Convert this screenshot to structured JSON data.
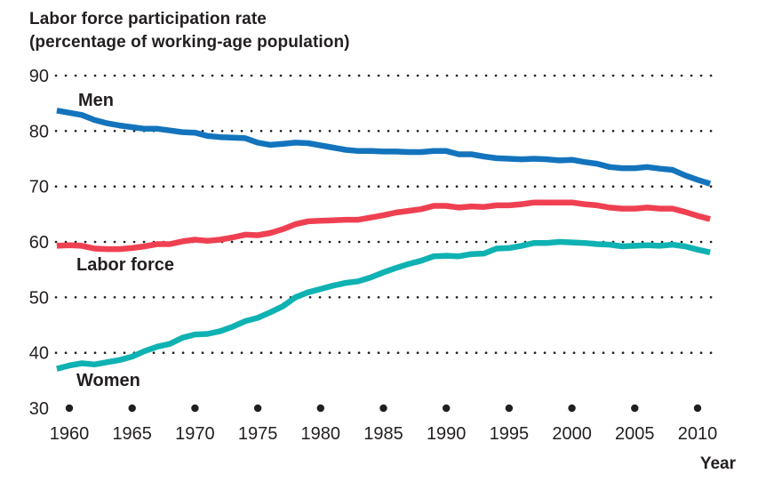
{
  "chart_data": {
    "type": "line",
    "title": "Labor force participation rate",
    "subtitle": "(percentage of working-age population)",
    "xlabel": "Year",
    "ylabel": "",
    "ylim": [
      30,
      90
    ],
    "x_range": [
      1959,
      2011
    ],
    "grid": "dotted horizontal lines at each y tick; row of bold dots along the 30 baseline at 5-year marks",
    "legend_position": "inline colored labels beside each line",
    "y_ticks": [
      90,
      80,
      70,
      60,
      50,
      40,
      30
    ],
    "x_ticks": [
      1960,
      1965,
      1970,
      1975,
      1980,
      1985,
      1990,
      1995,
      2000,
      2005,
      2010
    ],
    "x_start": 1959,
    "colors": {
      "axis_text": "#231f20",
      "grid_dots": "#231f20",
      "men": "#1374bd",
      "labor_force": "#ef4051",
      "women": "#0fb2b2"
    },
    "series": [
      {
        "name": "Men",
        "color": "#1374bd",
        "values": [
          83.7,
          83.3,
          82.9,
          82.0,
          81.4,
          81.0,
          80.7,
          80.4,
          80.4,
          80.1,
          79.8,
          79.7,
          79.1,
          78.9,
          78.8,
          78.7,
          77.9,
          77.5,
          77.7,
          77.9,
          77.8,
          77.4,
          77.0,
          76.6,
          76.4,
          76.4,
          76.3,
          76.3,
          76.2,
          76.2,
          76.4,
          76.4,
          75.8,
          75.8,
          75.4,
          75.1,
          75.0,
          74.9,
          75.0,
          74.9,
          74.7,
          74.8,
          74.4,
          74.1,
          73.5,
          73.3,
          73.3,
          73.5,
          73.2,
          73.0,
          72.0,
          71.2,
          70.5
        ]
      },
      {
        "name": "Labor force",
        "color": "#ef4051",
        "values": [
          59.3,
          59.4,
          59.3,
          58.8,
          58.7,
          58.7,
          58.9,
          59.2,
          59.6,
          59.6,
          60.1,
          60.4,
          60.2,
          60.4,
          60.8,
          61.3,
          61.2,
          61.6,
          62.3,
          63.2,
          63.7,
          63.8,
          63.9,
          64.0,
          64.0,
          64.4,
          64.8,
          65.3,
          65.6,
          65.9,
          66.5,
          66.5,
          66.2,
          66.4,
          66.3,
          66.6,
          66.6,
          66.8,
          67.1,
          67.1,
          67.1,
          67.1,
          66.8,
          66.6,
          66.2,
          66.0,
          66.0,
          66.2,
          66.0,
          66.0,
          65.4,
          64.7,
          64.1
        ]
      },
      {
        "name": "Women",
        "color": "#0fb2b2",
        "values": [
          37.1,
          37.7,
          38.1,
          37.9,
          38.3,
          38.7,
          39.3,
          40.3,
          41.1,
          41.6,
          42.7,
          43.3,
          43.4,
          43.9,
          44.7,
          45.7,
          46.3,
          47.3,
          48.4,
          50.0,
          50.9,
          51.5,
          52.1,
          52.6,
          52.9,
          53.6,
          54.5,
          55.3,
          56.0,
          56.6,
          57.4,
          57.5,
          57.4,
          57.8,
          57.9,
          58.8,
          58.9,
          59.3,
          59.8,
          59.8,
          60.0,
          59.9,
          59.8,
          59.6,
          59.5,
          59.2,
          59.3,
          59.4,
          59.3,
          59.5,
          59.2,
          58.6,
          58.1
        ]
      }
    ]
  }
}
